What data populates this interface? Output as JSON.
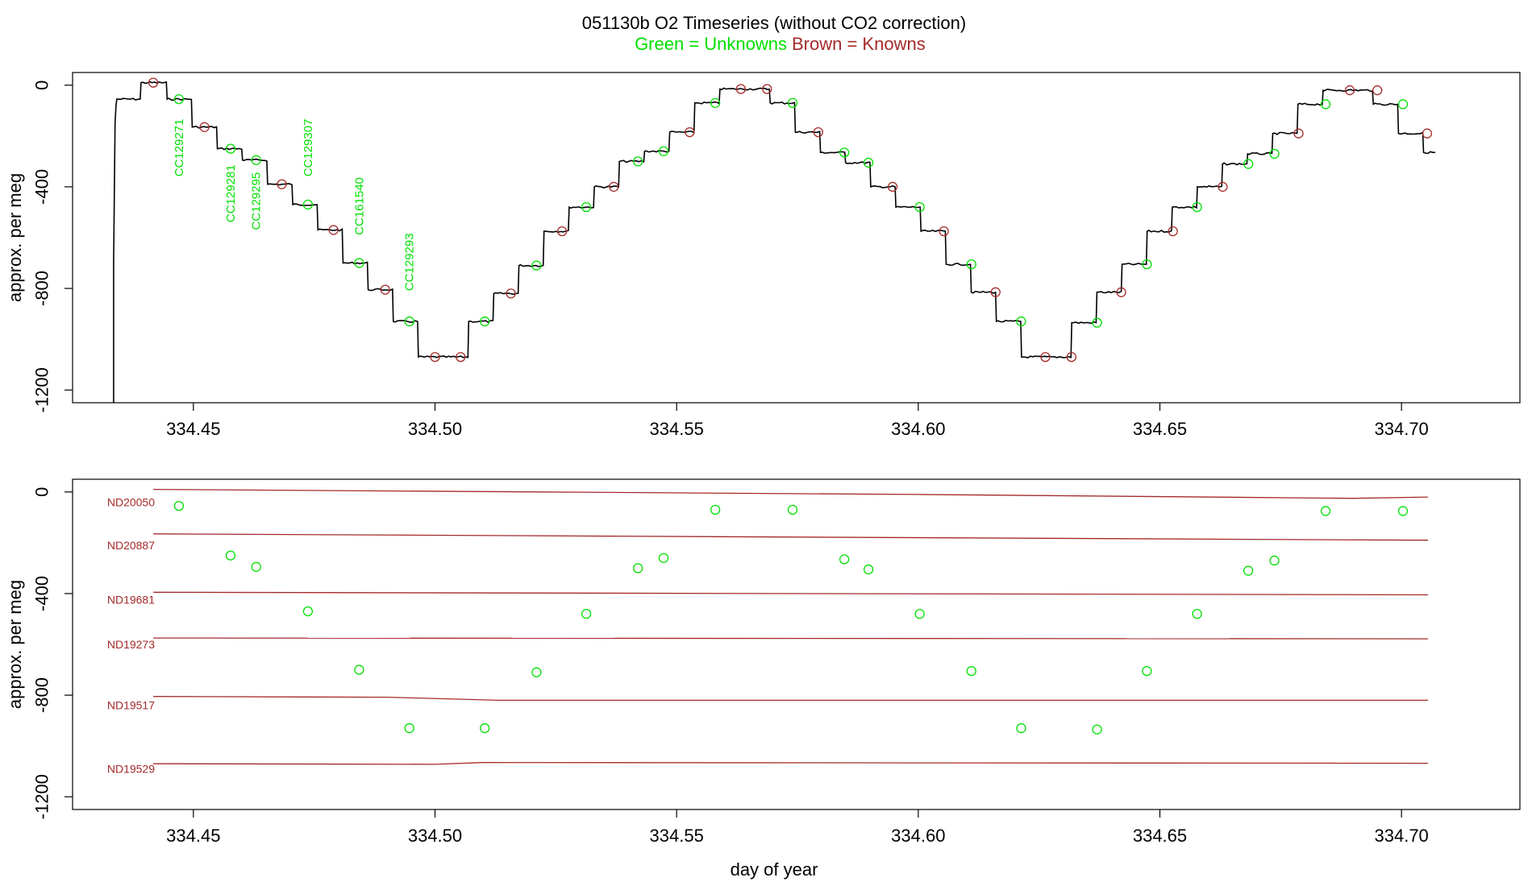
{
  "title": {
    "line1": "051130b   O2 Timeseries (without CO2 correction)",
    "legend_green": "Green = Unknowns",
    "legend_brown": "Brown = Knowns"
  },
  "colors": {
    "unknown": "#00e000",
    "known": "#a52a2a",
    "trace": "#000000",
    "axis": "#000000"
  },
  "chart_data": [
    {
      "type": "line",
      "panel": "top",
      "ylabel": "approx. per meg",
      "xlabel": "",
      "xlim": [
        334.425,
        334.7245
      ],
      "ylim": [
        -1250,
        50
      ],
      "x_ticks": [
        334.45,
        334.5,
        334.55,
        334.6,
        334.65,
        334.7
      ],
      "x_tick_labels": [
        "334.45",
        "334.50",
        "334.55",
        "334.60",
        "334.65",
        "334.70"
      ],
      "y_ticks": [
        0,
        -400,
        -800,
        -1200
      ],
      "y_tick_labels": [
        "0",
        "-400",
        "-800",
        "-1200"
      ],
      "trace_start": {
        "x": 334.4335,
        "y": -1250
      },
      "trace_steps": [
        {
          "x0": 334.434,
          "x1": 334.439,
          "y": -55
        },
        {
          "x0": 334.439,
          "x1": 334.4444,
          "y": 10
        },
        {
          "x0": 334.4444,
          "x1": 334.4496,
          "y": -55
        },
        {
          "x0": 334.4496,
          "x1": 334.4548,
          "y": -165
        },
        {
          "x0": 334.4548,
          "x1": 334.46,
          "y": -250
        },
        {
          "x0": 334.46,
          "x1": 334.4652,
          "y": -295
        },
        {
          "x0": 334.4652,
          "x1": 334.4704,
          "y": -390
        },
        {
          "x0": 334.4704,
          "x1": 334.4756,
          "y": -470
        },
        {
          "x0": 334.4756,
          "x1": 334.4808,
          "y": -570
        },
        {
          "x0": 334.4808,
          "x1": 334.486,
          "y": -700
        },
        {
          "x0": 334.486,
          "x1": 334.4912,
          "y": -805
        },
        {
          "x0": 334.4912,
          "x1": 334.4964,
          "y": -930
        },
        {
          "x0": 334.4964,
          "x1": 334.5068,
          "y": -1070
        },
        {
          "x0": 334.5068,
          "x1": 334.512,
          "y": -930
        },
        {
          "x0": 334.512,
          "x1": 334.5172,
          "y": -820
        },
        {
          "x0": 334.5172,
          "x1": 334.5224,
          "y": -710
        },
        {
          "x0": 334.5224,
          "x1": 334.5276,
          "y": -575
        },
        {
          "x0": 334.5276,
          "x1": 334.5328,
          "y": -480
        },
        {
          "x0": 334.5328,
          "x1": 334.538,
          "y": -400
        },
        {
          "x0": 334.538,
          "x1": 334.5432,
          "y": -300
        },
        {
          "x0": 334.5432,
          "x1": 334.5484,
          "y": -260
        },
        {
          "x0": 334.5484,
          "x1": 334.5536,
          "y": -185
        },
        {
          "x0": 334.5536,
          "x1": 334.5588,
          "y": -70
        },
        {
          "x0": 334.5588,
          "x1": 334.5692,
          "y": -15
        },
        {
          "x0": 334.5692,
          "x1": 334.5744,
          "y": -70
        },
        {
          "x0": 334.5744,
          "x1": 334.5796,
          "y": -185
        },
        {
          "x0": 334.5796,
          "x1": 334.5848,
          "y": -265
        },
        {
          "x0": 334.5848,
          "x1": 334.59,
          "y": -305
        },
        {
          "x0": 334.59,
          "x1": 334.5952,
          "y": -400
        },
        {
          "x0": 334.5952,
          "x1": 334.6004,
          "y": -480
        },
        {
          "x0": 334.6004,
          "x1": 334.6056,
          "y": -575
        },
        {
          "x0": 334.6056,
          "x1": 334.6108,
          "y": -705
        },
        {
          "x0": 334.6108,
          "x1": 334.616,
          "y": -815
        },
        {
          "x0": 334.616,
          "x1": 334.6212,
          "y": -930
        },
        {
          "x0": 334.6212,
          "x1": 334.6316,
          "y": -1070
        },
        {
          "x0": 334.6316,
          "x1": 334.6368,
          "y": -935
        },
        {
          "x0": 334.6368,
          "x1": 334.642,
          "y": -815
        },
        {
          "x0": 334.642,
          "x1": 334.6472,
          "y": -705
        },
        {
          "x0": 334.6472,
          "x1": 334.6524,
          "y": -575
        },
        {
          "x0": 334.6524,
          "x1": 334.6576,
          "y": -480
        },
        {
          "x0": 334.6576,
          "x1": 334.6628,
          "y": -400
        },
        {
          "x0": 334.6628,
          "x1": 334.668,
          "y": -310
        },
        {
          "x0": 334.668,
          "x1": 334.6732,
          "y": -270
        },
        {
          "x0": 334.6732,
          "x1": 334.6784,
          "y": -190
        },
        {
          "x0": 334.6784,
          "x1": 334.6836,
          "y": -75
        },
        {
          "x0": 334.6836,
          "x1": 334.694,
          "y": -20
        },
        {
          "x0": 334.694,
          "x1": 334.6992,
          "y": -75
        },
        {
          "x0": 334.6992,
          "x1": 334.7044,
          "y": -190
        },
        {
          "x0": 334.7044,
          "x1": 334.707,
          "y": -265
        }
      ],
      "known_points": [
        {
          "x": 334.4417,
          "y": 10
        },
        {
          "x": 334.4523,
          "y": -165
        },
        {
          "x": 334.4683,
          "y": -390
        },
        {
          "x": 334.479,
          "y": -570
        },
        {
          "x": 334.4897,
          "y": -805
        },
        {
          "x": 334.5,
          "y": -1070
        },
        {
          "x": 334.5053,
          "y": -1070
        },
        {
          "x": 334.5157,
          "y": -820
        },
        {
          "x": 334.5263,
          "y": -575
        },
        {
          "x": 334.537,
          "y": -400
        },
        {
          "x": 334.5527,
          "y": -185
        },
        {
          "x": 334.5633,
          "y": -15
        },
        {
          "x": 334.5687,
          "y": -15
        },
        {
          "x": 334.5793,
          "y": -185
        },
        {
          "x": 334.5947,
          "y": -400
        },
        {
          "x": 334.6053,
          "y": -575
        },
        {
          "x": 334.616,
          "y": -815
        },
        {
          "x": 334.6263,
          "y": -1070
        },
        {
          "x": 334.6317,
          "y": -1070
        },
        {
          "x": 334.642,
          "y": -815
        },
        {
          "x": 334.6527,
          "y": -575
        },
        {
          "x": 334.663,
          "y": -400
        },
        {
          "x": 334.6787,
          "y": -190
        },
        {
          "x": 334.6893,
          "y": -20
        },
        {
          "x": 334.695,
          "y": -20
        },
        {
          "x": 334.7053,
          "y": -190
        }
      ],
      "unknown_points": [
        {
          "x": 334.447,
          "y": -55
        },
        {
          "x": 334.4577,
          "y": -250
        },
        {
          "x": 334.463,
          "y": -295
        },
        {
          "x": 334.4737,
          "y": -470
        },
        {
          "x": 334.4843,
          "y": -700
        },
        {
          "x": 334.4947,
          "y": -930
        },
        {
          "x": 334.5103,
          "y": -930
        },
        {
          "x": 334.521,
          "y": -710
        },
        {
          "x": 334.5313,
          "y": -480
        },
        {
          "x": 334.542,
          "y": -300
        },
        {
          "x": 334.5473,
          "y": -260
        },
        {
          "x": 334.558,
          "y": -70
        },
        {
          "x": 334.574,
          "y": -70
        },
        {
          "x": 334.5847,
          "y": -265
        },
        {
          "x": 334.5897,
          "y": -305
        },
        {
          "x": 334.6003,
          "y": -480
        },
        {
          "x": 334.611,
          "y": -705
        },
        {
          "x": 334.6213,
          "y": -930
        },
        {
          "x": 334.637,
          "y": -935
        },
        {
          "x": 334.6473,
          "y": -705
        },
        {
          "x": 334.6577,
          "y": -480
        },
        {
          "x": 334.6683,
          "y": -310
        },
        {
          "x": 334.6737,
          "y": -270
        },
        {
          "x": 334.6843,
          "y": -75
        },
        {
          "x": 334.7003,
          "y": -75
        }
      ],
      "annotations": [
        {
          "label": "CC129271",
          "x": 334.447,
          "y": -360
        },
        {
          "label": "CC129281",
          "x": 334.4577,
          "y": -540
        },
        {
          "label": "CC129295",
          "x": 334.463,
          "y": -570
        },
        {
          "label": "CC129307",
          "x": 334.4737,
          "y": -360
        },
        {
          "label": "CC161540",
          "x": 334.4843,
          "y": -590
        },
        {
          "label": "CC129293",
          "x": 334.4947,
          "y": -810
        }
      ]
    },
    {
      "type": "scatter",
      "panel": "bottom",
      "ylabel": "approx. per meg",
      "xlabel": "day of year",
      "xlim": [
        334.425,
        334.7245
      ],
      "ylim": [
        -1250,
        50
      ],
      "x_ticks": [
        334.45,
        334.5,
        334.55,
        334.6,
        334.65,
        334.7
      ],
      "x_tick_labels": [
        "334.45",
        "334.50",
        "334.55",
        "334.60",
        "334.65",
        "334.70"
      ],
      "y_ticks": [
        0,
        -400,
        -800,
        -1200
      ],
      "y_tick_labels": [
        "0",
        "-400",
        "-800",
        "-1200"
      ],
      "reference_lines": [
        {
          "name": "ND20050",
          "x": [
            334.4417,
            334.6,
            334.69,
            334.7055
          ],
          "y": [
            10,
            -10,
            -25,
            -20
          ],
          "label_y": -40
        },
        {
          "name": "ND20887",
          "x": [
            334.4417,
            334.7055
          ],
          "y": [
            -165,
            -190
          ],
          "label_y": -210
        },
        {
          "name": "ND19681",
          "x": [
            334.4417,
            334.7055
          ],
          "y": [
            -395,
            -405
          ],
          "label_y": -425
        },
        {
          "name": "ND19273",
          "x": [
            334.4417,
            334.7055
          ],
          "y": [
            -575,
            -578
          ],
          "label_y": -600
        },
        {
          "name": "ND19517",
          "x": [
            334.4417,
            334.49,
            334.513,
            334.7055
          ],
          "y": [
            -805,
            -808,
            -820,
            -820
          ],
          "label_y": -840
        },
        {
          "name": "ND19529",
          "x": [
            334.4417,
            334.5,
            334.51,
            334.7055
          ],
          "y": [
            -1070,
            -1072,
            -1065,
            -1068
          ],
          "label_y": -1090
        }
      ],
      "unknown_points": [
        {
          "x": 334.447,
          "y": -55
        },
        {
          "x": 334.4577,
          "y": -250
        },
        {
          "x": 334.463,
          "y": -295
        },
        {
          "x": 334.4737,
          "y": -470
        },
        {
          "x": 334.4843,
          "y": -700
        },
        {
          "x": 334.4947,
          "y": -930
        },
        {
          "x": 334.5103,
          "y": -930
        },
        {
          "x": 334.521,
          "y": -710
        },
        {
          "x": 334.5313,
          "y": -480
        },
        {
          "x": 334.542,
          "y": -300
        },
        {
          "x": 334.5473,
          "y": -260
        },
        {
          "x": 334.558,
          "y": -70
        },
        {
          "x": 334.574,
          "y": -70
        },
        {
          "x": 334.5847,
          "y": -265
        },
        {
          "x": 334.5897,
          "y": -305
        },
        {
          "x": 334.6003,
          "y": -480
        },
        {
          "x": 334.611,
          "y": -705
        },
        {
          "x": 334.6213,
          "y": -930
        },
        {
          "x": 334.637,
          "y": -935
        },
        {
          "x": 334.6473,
          "y": -705
        },
        {
          "x": 334.6577,
          "y": -480
        },
        {
          "x": 334.6683,
          "y": -310
        },
        {
          "x": 334.6737,
          "y": -270
        },
        {
          "x": 334.6843,
          "y": -75
        },
        {
          "x": 334.7003,
          "y": -75
        }
      ]
    }
  ]
}
